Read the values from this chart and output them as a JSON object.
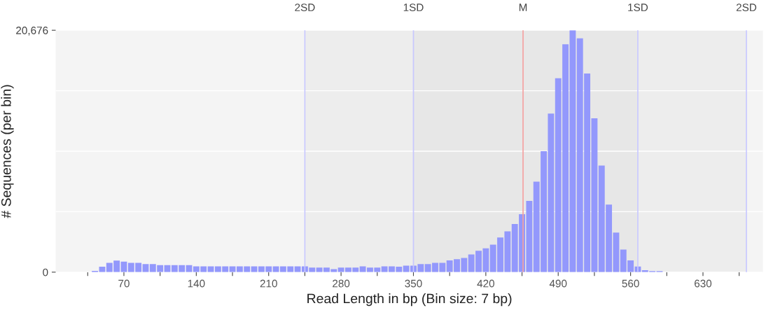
{
  "chart_data": {
    "type": "histogram",
    "xlabel": "Read Length in bp (Bin size: 7 bp)",
    "ylabel": "# Sequences (per bin)",
    "bins": [
      38.5,
      45.5,
      52.5,
      59.5,
      66.5,
      73.5,
      80.5,
      87.5,
      94.5,
      101.5,
      108.5,
      115.5,
      122.5,
      129.5,
      136.5,
      143.5,
      150.5,
      157.5,
      164.5,
      171.5,
      178.5,
      185.5,
      192.5,
      199.5,
      206.5,
      213.5,
      220.5,
      227.5,
      234.5,
      241.5,
      248.5,
      255.5,
      262.5,
      269.5,
      276.5,
      283.5,
      290.5,
      297.5,
      304.5,
      311.5,
      318.5,
      325.5,
      332.5,
      339.5,
      346.5,
      353.5,
      360.5,
      367.5,
      374.5,
      381.5,
      388.5,
      395.5,
      402.5,
      409.5,
      416.5,
      423.5,
      430.5,
      437.5,
      444.5,
      451.5,
      458.5,
      465.5,
      472.5,
      479.5,
      486.5,
      493.5,
      500.5,
      507.5,
      514.5,
      521.5,
      528.5,
      535.5,
      542.5,
      549.5,
      556.5,
      563.5,
      570.5,
      577.5,
      584.5,
      591.5
    ],
    "values": [
      110,
      470,
      790,
      990,
      900,
      790,
      790,
      690,
      690,
      600,
      600,
      600,
      600,
      600,
      490,
      490,
      490,
      490,
      490,
      490,
      490,
      490,
      490,
      490,
      490,
      490,
      490,
      490,
      490,
      490,
      390,
      390,
      390,
      260,
      390,
      390,
      390,
      490,
      390,
      390,
      490,
      490,
      460,
      560,
      560,
      690,
      690,
      800,
      800,
      1000,
      1110,
      1210,
      1520,
      1830,
      2040,
      2350,
      2970,
      3490,
      4110,
      4950,
      6090,
      7730,
      10340,
      13550,
      16580,
      19470,
      20676,
      19990,
      16980,
      13150,
      9110,
      5780,
      3380,
      1930,
      1000,
      480,
      170,
      100,
      100
    ],
    "color": "#9398fc",
    "xlim": [
      4,
      688
    ],
    "ylim": [
      0,
      20676
    ],
    "xticks": [
      {
        "value": 35,
        "label": null
      },
      70,
      {
        "value": 105,
        "label": null
      },
      140,
      {
        "value": 175,
        "label": null
      },
      210,
      {
        "value": 245,
        "label": null
      },
      280,
      {
        "value": 315,
        "label": null
      },
      350,
      {
        "value": 385,
        "label": null
      },
      420,
      {
        "value": 455,
        "label": null
      },
      490,
      {
        "value": 525,
        "label": null
      },
      560,
      {
        "value": 595,
        "label": null
      },
      630,
      {
        "value": 665,
        "label": null
      }
    ],
    "yticks": [
      0,
      {
        "value": 5169,
        "label": null
      },
      {
        "value": 10338,
        "label": null
      },
      {
        "value": 15507,
        "label": null
      },
      {
        "value": 20676,
        "label": "20,676"
      }
    ],
    "grid": "y",
    "bands": [
      {
        "axis": "x",
        "from": 245,
        "to": 672,
        "color": "#ededed"
      },
      {
        "axis": "x",
        "from": 350,
        "to": 567,
        "color": "#e7e7e7"
      }
    ],
    "ref_lines": [
      {
        "axis": "x",
        "value": 245,
        "label": "2SD",
        "color": "#c8c8ff"
      },
      {
        "axis": "x",
        "value": 350,
        "label": "1SD",
        "color": "#c8c8ff"
      },
      {
        "axis": "x",
        "value": 456,
        "label": "M",
        "color": "#f4a0a0"
      },
      {
        "axis": "x",
        "value": 567,
        "label": "1SD",
        "color": "#c8c8ff"
      },
      {
        "axis": "x",
        "value": 672,
        "label": "2SD",
        "color": "#c8c8ff"
      }
    ]
  }
}
